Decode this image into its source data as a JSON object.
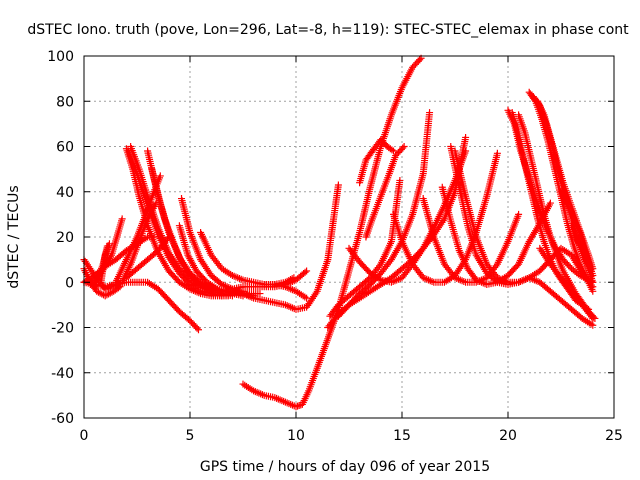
{
  "chart_data": {
    "type": "scatter",
    "title": "dSTEC Iono. truth (pove, Lon=296, Lat=-8, h=119): STEC-STEC_elemax in phase cont",
    "xlabel": "GPS time / hours of day 096 of year 2015",
    "ylabel": "dSTEC  / TECUs",
    "xlim": [
      0,
      25
    ],
    "ylim": [
      -60,
      100
    ],
    "xticks": [
      0,
      5,
      10,
      15,
      20,
      25
    ],
    "yticks": [
      -60,
      -40,
      -20,
      0,
      20,
      40,
      60,
      80,
      100
    ],
    "xtick_labels": [
      "0",
      "5",
      "10",
      "15",
      "20",
      "25"
    ],
    "ytick_labels": [
      "-60",
      "-40",
      "-20",
      "0",
      "20",
      "40",
      "60",
      "80",
      "100"
    ],
    "grid": true,
    "marker": "+",
    "series_color": "#ff0000",
    "series": [
      {
        "x": [
          0.0,
          0.5,
          1.0,
          1.5,
          1.8
        ],
        "y": [
          10,
          3,
          -3,
          -1,
          0
        ]
      },
      {
        "x": [
          0.0,
          0.3,
          0.6,
          1.0,
          1.4,
          1.7
        ],
        "y": [
          6,
          0,
          -4,
          -6,
          -4,
          -2
        ]
      },
      {
        "x": [
          0.0,
          0.5,
          1.0,
          1.5,
          2.0,
          2.5,
          3.0,
          3.3
        ],
        "y": [
          0,
          3,
          7,
          10,
          14,
          17,
          20,
          20
        ]
      },
      {
        "x": [
          0.3,
          0.8,
          1.3,
          1.8
        ],
        "y": [
          -1,
          4,
          12,
          28
        ]
      },
      {
        "x": [
          0.5,
          0.9,
          1.1
        ],
        "y": [
          -2,
          8,
          16
        ]
      },
      {
        "x": [
          0.8,
          1.0,
          1.2
        ],
        "y": [
          0,
          12,
          17
        ]
      },
      {
        "x": [
          0.0,
          0.5,
          1.0,
          1.5,
          2.0,
          2.5,
          3.0,
          3.5,
          4.0,
          4.5,
          5.0,
          5.4
        ],
        "y": [
          0,
          -1,
          -2,
          -1,
          0,
          0,
          0,
          -3,
          -8,
          -13,
          -17,
          -21
        ]
      },
      {
        "x": [
          2.0,
          2.3,
          2.6,
          3.0,
          3.5,
          4.0,
          4.5,
          5.0,
          5.5,
          6.0,
          6.5
        ],
        "y": [
          59,
          50,
          38,
          25,
          13,
          5,
          0,
          -3,
          -5,
          -6,
          -6
        ]
      },
      {
        "x": [
          2.1,
          2.5,
          3.0,
          3.5,
          4.0,
          4.5,
          5.0,
          5.5,
          6.0,
          6.5,
          6.8
        ],
        "y": [
          58,
          48,
          34,
          21,
          11,
          4,
          -1,
          -4,
          -5,
          -6,
          -6
        ]
      },
      {
        "x": [
          2.2,
          2.6,
          3.0,
          3.5,
          4.0,
          4.5,
          5.0,
          5.5,
          6.0,
          6.5,
          7.0
        ],
        "y": [
          60,
          50,
          38,
          24,
          13,
          6,
          1,
          -2,
          -4,
          -5,
          -6
        ]
      },
      {
        "x": [
          3.0,
          3.3,
          3.6,
          4.0,
          4.5,
          5.0,
          5.5,
          6.0,
          6.5,
          7.0,
          7.5
        ],
        "y": [
          58,
          46,
          35,
          22,
          11,
          4,
          0,
          -3,
          -4,
          -5,
          -6
        ]
      },
      {
        "x": [
          3.2,
          3.5,
          3.8,
          4.2,
          4.6,
          5.0,
          5.5,
          6.0,
          6.5,
          7.0,
          7.5
        ],
        "y": [
          50,
          38,
          28,
          18,
          9,
          3,
          -1,
          -3,
          -4,
          -4,
          -4
        ]
      },
      {
        "x": [
          1.5,
          2.0,
          2.5,
          3.0,
          3.3,
          3.6
        ],
        "y": [
          0,
          10,
          20,
          32,
          40,
          47
        ]
      },
      {
        "x": [
          1.8,
          2.2,
          2.6,
          3.0,
          3.4
        ],
        "y": [
          0,
          8,
          18,
          28,
          35
        ]
      },
      {
        "x": [
          2.0,
          2.5,
          3.0,
          3.5,
          4.0
        ],
        "y": [
          2,
          6,
          10,
          14,
          20
        ]
      },
      {
        "x": [
          4.6,
          5.0,
          5.5,
          6.0,
          6.5,
          7.0,
          7.5,
          8.0
        ],
        "y": [
          37,
          22,
          10,
          3,
          -1,
          -3,
          -5,
          -6
        ]
      },
      {
        "x": [
          4.5,
          4.9,
          5.3,
          5.8,
          6.3,
          6.8,
          7.3,
          7.8,
          8.3
        ],
        "y": [
          25,
          12,
          5,
          0,
          -3,
          -4,
          -5,
          -5,
          -5
        ]
      },
      {
        "x": [
          5.5,
          6.0,
          6.5,
          7.0,
          7.5,
          8.0,
          8.5,
          9.0,
          9.5,
          9.9
        ],
        "y": [
          22,
          12,
          6,
          3,
          1,
          0,
          -1,
          -1,
          0,
          2
        ]
      },
      {
        "x": [
          7.0,
          7.5,
          8.0,
          8.5,
          9.0,
          9.5,
          10.0,
          10.5
        ],
        "y": [
          -3,
          -2,
          -2,
          -2,
          -2,
          -1,
          1,
          5
        ]
      },
      {
        "x": [
          7.0,
          7.5,
          8.0,
          8.5,
          9.0,
          9.5,
          10.0,
          10.5,
          11.0,
          11.5,
          12.0
        ],
        "y": [
          -3,
          -5,
          -7,
          -8,
          -9,
          -10,
          -12,
          -11,
          -4,
          10,
          43
        ]
      },
      {
        "x": [
          8.5,
          9.0,
          9.5,
          10.0,
          10.5
        ],
        "y": [
          -1,
          -1,
          -2,
          -4,
          -7
        ]
      },
      {
        "x": [
          7.5,
          8.0,
          8.5,
          9.0,
          9.5,
          10.0,
          10.3,
          10.6,
          11.0,
          11.5,
          12.0,
          12.5,
          13.0,
          13.5,
          14.0,
          14.5,
          15.0,
          15.5,
          15.9
        ],
        "y": [
          -45,
          -48,
          -50,
          -51,
          -53,
          -55,
          -54,
          -48,
          -38,
          -25,
          -12,
          5,
          22,
          42,
          60,
          74,
          86,
          95,
          99
        ]
      },
      {
        "x": [
          11.5,
          12.0,
          12.5,
          13.0,
          13.5,
          14.0,
          14.5,
          15.0,
          15.5,
          16.0,
          16.5,
          17.0,
          17.5,
          18.0
        ],
        "y": [
          -20,
          -14,
          -10,
          -7,
          -4,
          -1,
          2,
          6,
          10,
          15,
          21,
          28,
          40,
          64
        ]
      },
      {
        "x": [
          12.0,
          12.5,
          13.0,
          13.5,
          14.0,
          14.5,
          15.0,
          15.5,
          16.0,
          16.3
        ],
        "y": [
          -15,
          -10,
          -5,
          -1,
          4,
          10,
          18,
          30,
          48,
          75
        ]
      },
      {
        "x": [
          11.6,
          12.0,
          12.5,
          13.0,
          13.5,
          14.0,
          14.5,
          14.9
        ],
        "y": [
          -15,
          -10,
          -6,
          -2,
          2,
          8,
          18,
          45
        ]
      },
      {
        "x": [
          12.5,
          13.0,
          13.5,
          14.0,
          14.5,
          15.0,
          15.5,
          16.0,
          16.5,
          17.0,
          17.5,
          18.0
        ],
        "y": [
          15,
          9,
          4,
          1,
          0,
          2,
          8,
          15,
          24,
          34,
          45,
          58
        ]
      },
      {
        "x": [
          13.0,
          13.3,
          13.6,
          14.0,
          14.3,
          14.6
        ],
        "y": [
          44,
          54,
          58,
          63,
          60,
          58
        ]
      },
      {
        "x": [
          13.3,
          13.6,
          14.0,
          14.4,
          14.7,
          15.1
        ],
        "y": [
          20,
          28,
          38,
          48,
          56,
          60
        ]
      },
      {
        "x": [
          14.6,
          15.0,
          15.5,
          16.0,
          16.5,
          17.0,
          17.5,
          18.0,
          18.5,
          19.0,
          19.5
        ],
        "y": [
          30,
          18,
          8,
          2,
          0,
          0,
          3,
          10,
          22,
          38,
          57
        ]
      },
      {
        "x": [
          16.0,
          16.5,
          17.0,
          17.5,
          18.0,
          18.5,
          19.0,
          19.5,
          20.0,
          20.5
        ],
        "y": [
          37,
          20,
          8,
          2,
          0,
          0,
          2,
          8,
          18,
          30
        ]
      },
      {
        "x": [
          16.9,
          17.3,
          17.7,
          18.1,
          18.5,
          19.0,
          19.5,
          20.0,
          20.5,
          21.0,
          21.5,
          22.0
        ],
        "y": [
          42,
          27,
          14,
          6,
          1,
          -1,
          0,
          3,
          8,
          18,
          26,
          35
        ]
      },
      {
        "x": [
          17.3,
          17.7,
          18.1,
          18.5,
          19.0,
          19.5,
          20.0,
          20.5,
          21.0,
          21.5,
          22.0,
          22.5,
          23.0,
          23.5,
          24.0
        ],
        "y": [
          60,
          42,
          25,
          12,
          4,
          0,
          -1,
          0,
          2,
          5,
          10,
          15,
          12,
          4,
          -2
        ]
      },
      {
        "x": [
          17.5,
          18.0,
          18.5,
          19.0,
          19.5,
          20.0,
          20.5,
          21.0,
          21.5,
          22.0,
          22.5,
          23.0,
          23.5,
          24.0
        ],
        "y": [
          58,
          38,
          20,
          8,
          2,
          0,
          0,
          2,
          0,
          -4,
          -8,
          -12,
          -16,
          -19
        ]
      },
      {
        "x": [
          20.0,
          20.3,
          20.6,
          21.0,
          21.4,
          21.8,
          22.2,
          22.6,
          23.0,
          23.4,
          23.8,
          24.0
        ],
        "y": [
          76,
          70,
          58,
          46,
          34,
          24,
          16,
          10,
          6,
          3,
          1,
          0
        ]
      },
      {
        "x": [
          20.2,
          20.5,
          20.8,
          21.1,
          21.4,
          21.7,
          22.0,
          22.3,
          22.6,
          22.9,
          23.2,
          23.5,
          23.8
        ],
        "y": [
          75,
          65,
          52,
          40,
          28,
          18,
          10,
          4,
          0,
          -4,
          -8,
          -10,
          -12
        ]
      },
      {
        "x": [
          20.5,
          20.8,
          21.1,
          21.4,
          21.7,
          22.0,
          22.3,
          22.6,
          22.9,
          23.2,
          23.5,
          23.8,
          24.1
        ],
        "y": [
          74,
          66,
          54,
          42,
          30,
          20,
          12,
          5,
          0,
          -5,
          -9,
          -13,
          -16
        ]
      },
      {
        "x": [
          21.0,
          21.3,
          21.6,
          21.9,
          22.2,
          22.5,
          22.8,
          23.1,
          23.4,
          23.7,
          24.0
        ],
        "y": [
          84,
          80,
          72,
          62,
          50,
          38,
          26,
          16,
          8,
          2,
          -4
        ]
      },
      {
        "x": [
          21.2,
          21.5,
          21.8,
          22.1,
          22.4,
          22.7,
          23.0,
          23.3,
          23.6,
          23.9
        ],
        "y": [
          82,
          78,
          70,
          60,
          48,
          38,
          28,
          18,
          10,
          5
        ]
      },
      {
        "x": [
          21.4,
          21.7,
          22.0,
          22.3,
          22.6,
          22.9,
          23.2,
          23.5,
          23.8,
          24.0
        ],
        "y": [
          80,
          74,
          64,
          54,
          44,
          36,
          28,
          20,
          12,
          6
        ]
      },
      {
        "x": [
          22.5,
          22.8,
          23.1,
          23.4,
          23.7,
          24.0
        ],
        "y": [
          40,
          34,
          28,
          22,
          12,
          3
        ]
      },
      {
        "x": [
          23.0,
          23.2,
          23.4,
          23.6,
          23.8,
          24.0
        ],
        "y": [
          25,
          20,
          16,
          12,
          6,
          0
        ]
      },
      {
        "x": [
          21.5,
          22.0,
          22.5,
          23.0,
          23.5,
          24.0
        ],
        "y": [
          15,
          8,
          2,
          -4,
          -10,
          -16
        ]
      }
    ]
  }
}
